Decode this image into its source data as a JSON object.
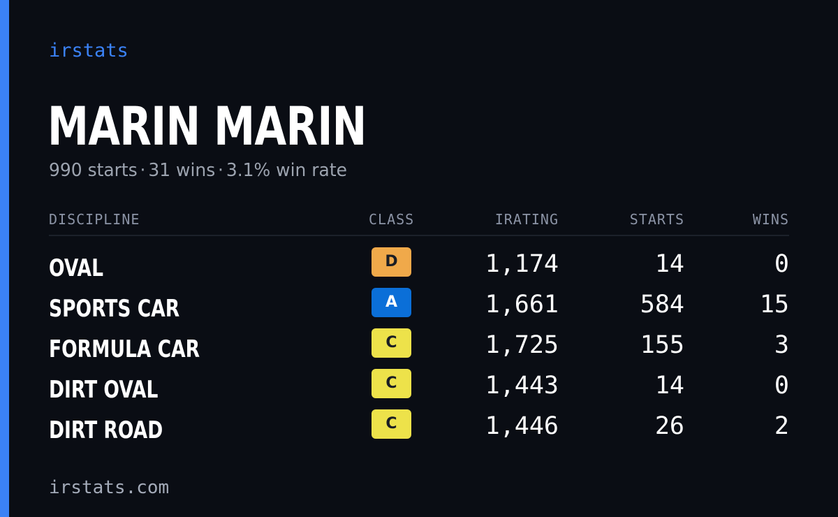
{
  "brand": "irstats",
  "colors": {
    "accent": "#3b82f6",
    "background": "#0a0d14",
    "class_D": "#f0a94a",
    "class_A": "#0b6fd8",
    "class_C": "#ede24a"
  },
  "driver": {
    "name": "MARIN MARIN",
    "starts_text": "990 starts",
    "wins_text": "31 wins",
    "winrate_text": "3.1% win rate",
    "separator": "·"
  },
  "table": {
    "headers": {
      "discipline": "DISCIPLINE",
      "class": "CLASS",
      "irating": "IRATING",
      "starts": "STARTS",
      "wins": "WINS"
    },
    "rows": [
      {
        "discipline": "OVAL",
        "class": "D",
        "irating": "1,174",
        "starts": "14",
        "wins": "0"
      },
      {
        "discipline": "SPORTS CAR",
        "class": "A",
        "irating": "1,661",
        "starts": "584",
        "wins": "15"
      },
      {
        "discipline": "FORMULA CAR",
        "class": "C",
        "irating": "1,725",
        "starts": "155",
        "wins": "3"
      },
      {
        "discipline": "DIRT OVAL",
        "class": "C",
        "irating": "1,443",
        "starts": "14",
        "wins": "0"
      },
      {
        "discipline": "DIRT ROAD",
        "class": "C",
        "irating": "1,446",
        "starts": "26",
        "wins": "2"
      }
    ]
  },
  "footer": "irstats.com"
}
